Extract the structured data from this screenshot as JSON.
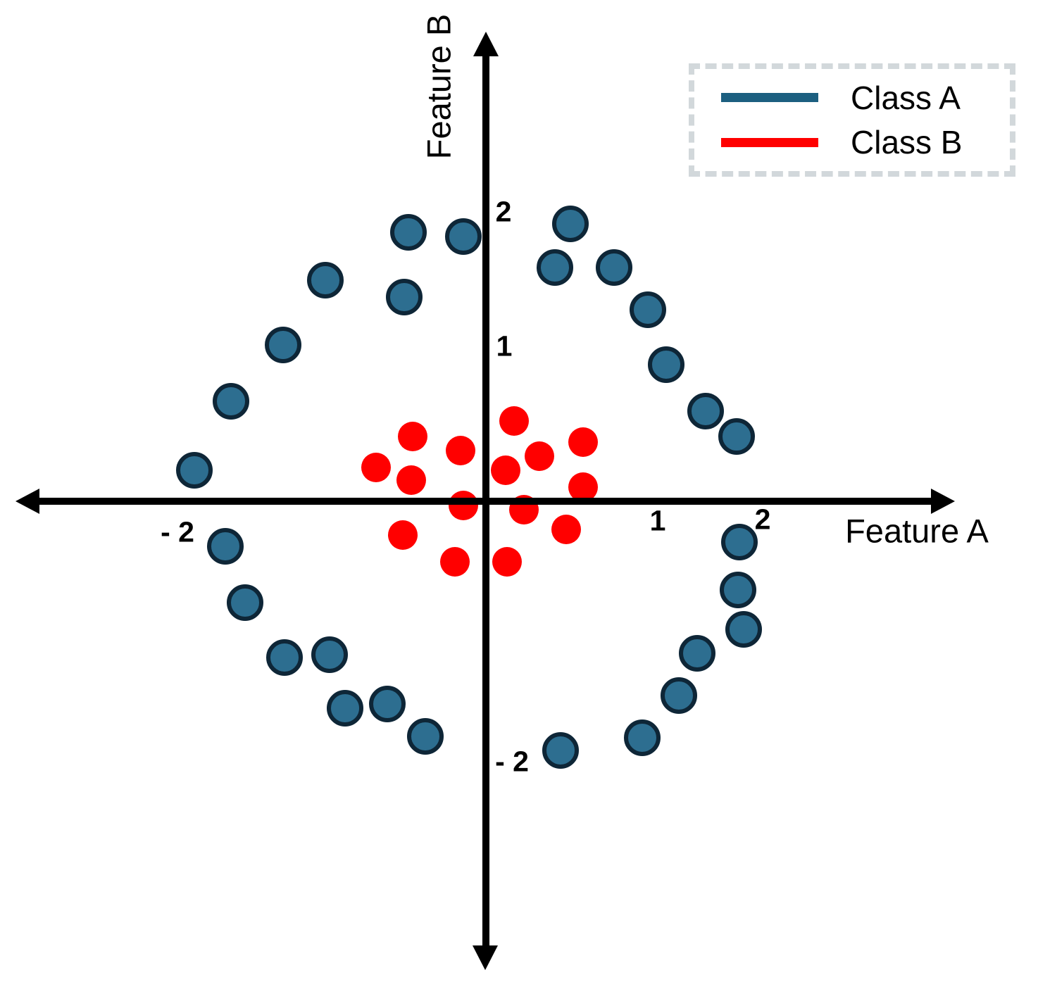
{
  "figure": {
    "background": "#ffffff",
    "axis_color": "#000000"
  },
  "axes": {
    "x_label": "Feature A",
    "y_label": "Feature B",
    "x_ticks": [
      {
        "value": -2,
        "text": "- 2"
      },
      {
        "value": 1,
        "text": "1"
      },
      {
        "value": 2,
        "text": "2"
      }
    ],
    "y_ticks": [
      {
        "value": 2,
        "text": "2"
      },
      {
        "value": 1,
        "text": "1"
      },
      {
        "value": -2,
        "text": "- 2"
      }
    ]
  },
  "legend": {
    "border_color": "#d2d8db",
    "entries": [
      {
        "label": "Class A",
        "color": "#1c5f80"
      },
      {
        "label": "Class B",
        "color": "#ff0000"
      }
    ]
  },
  "chart_data": {
    "type": "scatter",
    "title": "",
    "xlabel": "Feature A",
    "ylabel": "Feature B",
    "xlim": [
      -3.3,
      3.3
    ],
    "ylim": [
      -3.3,
      3.3
    ],
    "grid": false,
    "axis_style": "centered-arrows",
    "legend_position": "top-right",
    "x_tick_values": [
      -2,
      1,
      2
    ],
    "y_tick_values": [
      2,
      1,
      -2
    ],
    "series": [
      {
        "name": "Class A",
        "shape": "outer-ring",
        "marker_fill": "#2d6e90",
        "marker_stroke": "#0e2637",
        "points": [
          [
            -0.55,
            1.91
          ],
          [
            -0.16,
            1.88
          ],
          [
            0.6,
            1.97
          ],
          [
            0.49,
            1.66
          ],
          [
            0.91,
            1.66
          ],
          [
            -1.14,
            1.57
          ],
          [
            -0.58,
            1.45
          ],
          [
            1.15,
            1.36
          ],
          [
            -1.44,
            1.11
          ],
          [
            1.28,
            0.97
          ],
          [
            -1.81,
            0.71
          ],
          [
            1.56,
            0.64
          ],
          [
            1.78,
            0.46
          ],
          [
            -2.07,
            0.22
          ],
          [
            -1.85,
            -0.32
          ],
          [
            1.8,
            -0.29
          ],
          [
            1.79,
            -0.63
          ],
          [
            -1.71,
            -0.72
          ],
          [
            1.83,
            -0.91
          ],
          [
            -1.43,
            -1.11
          ],
          [
            -1.11,
            -1.09
          ],
          [
            1.5,
            -1.08
          ],
          [
            -1.0,
            -1.47
          ],
          [
            -0.7,
            -1.44
          ],
          [
            1.37,
            -1.38
          ],
          [
            -0.43,
            -1.67
          ],
          [
            1.11,
            -1.68
          ],
          [
            0.53,
            -1.77
          ]
        ]
      },
      {
        "name": "Class B",
        "shape": "inner-cluster",
        "marker_fill": "#ff0000",
        "marker_stroke": null,
        "points": [
          [
            0.2,
            0.57
          ],
          [
            -0.52,
            0.46
          ],
          [
            -0.18,
            0.36
          ],
          [
            0.38,
            0.32
          ],
          [
            0.69,
            0.42
          ],
          [
            -0.78,
            0.24
          ],
          [
            0.14,
            0.22
          ],
          [
            -0.53,
            0.15
          ],
          [
            0.69,
            0.1
          ],
          [
            -0.16,
            -0.03
          ],
          [
            0.27,
            -0.06
          ],
          [
            -0.59,
            -0.24
          ],
          [
            0.57,
            -0.2
          ],
          [
            -0.22,
            -0.43
          ],
          [
            0.15,
            -0.43
          ]
        ]
      }
    ]
  }
}
